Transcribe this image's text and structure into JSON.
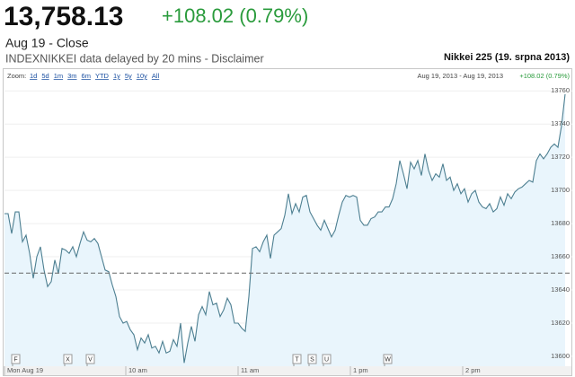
{
  "header": {
    "price": "13,758.13",
    "change": "+108.02 (0.79%)",
    "status": "Aug 19 - Close",
    "note": "INDEXNIKKEI data delayed by 20 mins - Disclaimer"
  },
  "toolbar": {
    "zoom_label": "Zoom:",
    "zoom_options": [
      "1d",
      "5d",
      "1m",
      "3m",
      "6m",
      "YTD",
      "1y",
      "5y",
      "10y",
      "All"
    ],
    "range": "Aug 19, 2013 - Aug 19, 2013",
    "range_change": "+108.02 (0.79%)"
  },
  "chart_data": {
    "type": "area",
    "title": "Nikkei 225 (19. srpna 2013)",
    "x": [
      0,
      2,
      4,
      6,
      8,
      10,
      12,
      14,
      16,
      18,
      20,
      22,
      24,
      26,
      28,
      30,
      32,
      34,
      36,
      38,
      40,
      42,
      44,
      46,
      48,
      50,
      52,
      54,
      56,
      58,
      60,
      62,
      64,
      66,
      68,
      70,
      72,
      74,
      76,
      78,
      80,
      82,
      84,
      86,
      88,
      90,
      92,
      94,
      96,
      98,
      100,
      102,
      104,
      106,
      108,
      110,
      112,
      114,
      116,
      118,
      120,
      122,
      124,
      126,
      128,
      130,
      132,
      134,
      136,
      138,
      140,
      142,
      144,
      146,
      148,
      150,
      152,
      154,
      156,
      158,
      160,
      162,
      164,
      166,
      168,
      170,
      172,
      174,
      176,
      178,
      180,
      182,
      184,
      186,
      188,
      190,
      192,
      194,
      196,
      198,
      200,
      202,
      204,
      206,
      208,
      210,
      212,
      214,
      216,
      218,
      220,
      222,
      224,
      226,
      228,
      230,
      232,
      234,
      236,
      238,
      240,
      242,
      244,
      246,
      248,
      250,
      252,
      254,
      256,
      258,
      260,
      262,
      264,
      266,
      268,
      270,
      272,
      274,
      276,
      278,
      280,
      282,
      284,
      286,
      288,
      290,
      292,
      294,
      296,
      298,
      300,
      302,
      304,
      306,
      308,
      310,
      312
    ],
    "values": [
      13686,
      13686,
      13674,
      13687,
      13687,
      13669,
      13673,
      13662,
      13647,
      13660,
      13666,
      13652,
      13642,
      13645,
      13658,
      13650,
      13665,
      13664,
      13662,
      13666,
      13660,
      13668,
      13675,
      13670,
      13669,
      13671,
      13668,
      13660,
      13652,
      13651,
      13643,
      13636,
      13624,
      13620,
      13621,
      13616,
      13613,
      13604,
      13611,
      13608,
      13613,
      13605,
      13606,
      13602,
      13609,
      13602,
      13603,
      13610,
      13606,
      13620,
      13596,
      13608,
      13618,
      13609,
      13625,
      13630,
      13625,
      13639,
      13631,
      13632,
      13624,
      13628,
      13635,
      13631,
      13620,
      13620,
      13617,
      13615,
      13636,
      13665,
      13666,
      13663,
      13669,
      13673,
      13659,
      13673,
      13675,
      13677,
      13685,
      13698,
      13686,
      13692,
      13687,
      13696,
      13697,
      13687,
      13683,
      13679,
      13676,
      13682,
      13677,
      13672,
      13676,
      13685,
      13693,
      13697,
      13696,
      13697,
      13696,
      13682,
      13679,
      13679,
      13683,
      13684,
      13687,
      13687,
      13690,
      13690,
      13695,
      13704,
      13718,
      13710,
      13701,
      13717,
      13713,
      13718,
      13709,
      13722,
      13712,
      13706,
      13710,
      13708,
      13716,
      13706,
      13708,
      13700,
      13704,
      13698,
      13701,
      13693,
      13698,
      13700,
      13693,
      13690,
      13689,
      13692,
      13687,
      13689,
      13696,
      13691,
      13698,
      13695,
      13699,
      13701,
      13702,
      13704,
      13706,
      13705,
      13718,
      13722,
      13719,
      13722,
      13726,
      13728,
      13726,
      13739,
      13758
    ],
    "color": "#4d7f91",
    "fill": "#e9f5fc",
    "previous_close": 13650.11,
    "xlim": [
      0,
      316
    ],
    "ylim": [
      13594,
      13765
    ],
    "xticks": [
      {
        "value": 0,
        "label": "Mon Aug 19"
      },
      {
        "value": 67.5,
        "label": "10 am"
      },
      {
        "value": 130,
        "label": "11 am"
      },
      {
        "value": 192.5,
        "label": "1 pm"
      },
      {
        "value": 255,
        "label": "2 pm"
      }
    ],
    "yticks": [
      13600,
      13620,
      13640,
      13660,
      13680,
      13700,
      13720,
      13740,
      13760
    ],
    "grid": true,
    "flags": [
      {
        "label": "F",
        "x": 4.5
      },
      {
        "label": "X",
        "x": 33.5
      },
      {
        "label": "V",
        "x": 46
      },
      {
        "label": "T",
        "x": 161
      },
      {
        "label": "S",
        "x": 169.5
      },
      {
        "label": "U",
        "x": 177.5
      },
      {
        "label": "W",
        "x": 211.5
      }
    ]
  }
}
